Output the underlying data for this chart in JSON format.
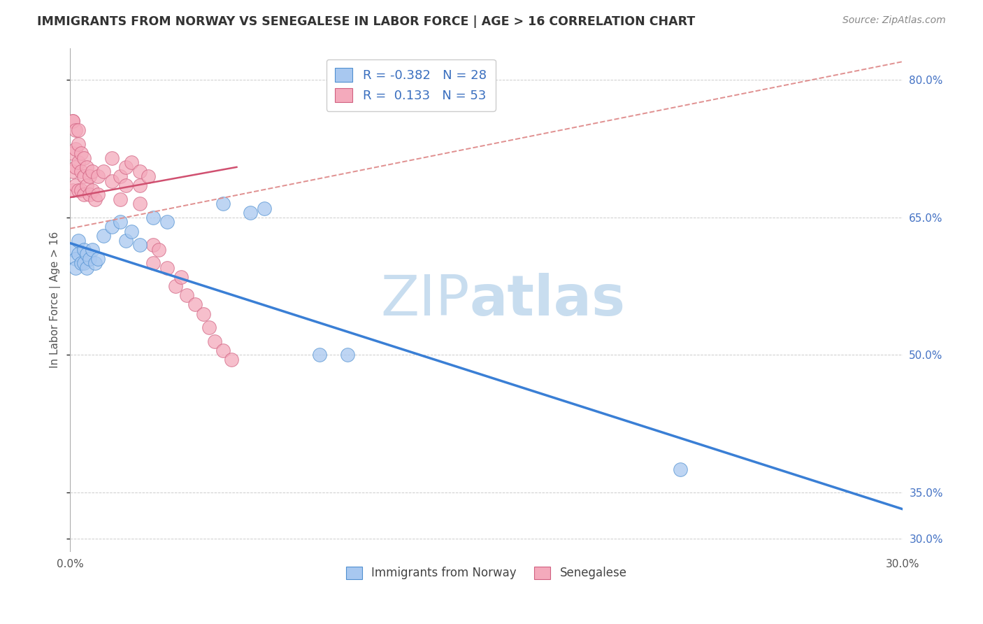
{
  "title": "IMMIGRANTS FROM NORWAY VS SENEGALESE IN LABOR FORCE | AGE > 16 CORRELATION CHART",
  "source": "Source: ZipAtlas.com",
  "ylabel": "In Labor Force | Age > 16",
  "xlim": [
    0.0,
    0.3
  ],
  "ylim": [
    0.285,
    0.835
  ],
  "yticks": [
    0.3,
    0.35,
    0.5,
    0.65,
    0.8
  ],
  "ytick_labels": [
    "30.0%",
    "35.0%",
    "50.0%",
    "65.0%",
    "80.0%"
  ],
  "xticks": [
    0.0,
    0.05,
    0.1,
    0.15,
    0.2,
    0.25,
    0.3
  ],
  "xtick_labels": [
    "0.0%",
    "",
    "",
    "",
    "",
    "",
    "30.0%"
  ],
  "legend_r_blue": "-0.382",
  "legend_n_blue": "28",
  "legend_r_pink": "0.133",
  "legend_n_pink": "53",
  "watermark_zip": "ZIP",
  "watermark_atlas": "atlas",
  "blue_scatter_x": [
    0.001,
    0.002,
    0.002,
    0.003,
    0.003,
    0.004,
    0.005,
    0.005,
    0.006,
    0.006,
    0.007,
    0.008,
    0.009,
    0.01,
    0.012,
    0.015,
    0.018,
    0.02,
    0.022,
    0.025,
    0.03,
    0.035,
    0.055,
    0.065,
    0.09,
    0.22,
    0.1,
    0.07
  ],
  "blue_scatter_y": [
    0.615,
    0.605,
    0.595,
    0.625,
    0.61,
    0.6,
    0.615,
    0.6,
    0.61,
    0.595,
    0.605,
    0.615,
    0.6,
    0.605,
    0.63,
    0.64,
    0.645,
    0.625,
    0.635,
    0.62,
    0.65,
    0.645,
    0.665,
    0.655,
    0.5,
    0.375,
    0.5,
    0.66
  ],
  "pink_scatter_x": [
    0.001,
    0.001,
    0.001,
    0.001,
    0.001,
    0.002,
    0.002,
    0.002,
    0.002,
    0.003,
    0.003,
    0.003,
    0.003,
    0.004,
    0.004,
    0.004,
    0.005,
    0.005,
    0.005,
    0.006,
    0.006,
    0.007,
    0.007,
    0.008,
    0.008,
    0.009,
    0.01,
    0.01,
    0.012,
    0.015,
    0.015,
    0.018,
    0.018,
    0.02,
    0.02,
    0.022,
    0.025,
    0.025,
    0.025,
    0.028,
    0.03,
    0.03,
    0.032,
    0.035,
    0.038,
    0.04,
    0.042,
    0.045,
    0.048,
    0.05,
    0.052,
    0.055,
    0.058
  ],
  "pink_scatter_y": [
    0.755,
    0.72,
    0.7,
    0.68,
    0.755,
    0.745,
    0.725,
    0.705,
    0.685,
    0.745,
    0.73,
    0.71,
    0.68,
    0.72,
    0.7,
    0.68,
    0.715,
    0.695,
    0.675,
    0.705,
    0.685,
    0.695,
    0.675,
    0.7,
    0.68,
    0.67,
    0.695,
    0.675,
    0.7,
    0.715,
    0.69,
    0.695,
    0.67,
    0.705,
    0.685,
    0.71,
    0.7,
    0.685,
    0.665,
    0.695,
    0.62,
    0.6,
    0.615,
    0.595,
    0.575,
    0.585,
    0.565,
    0.555,
    0.545,
    0.53,
    0.515,
    0.505,
    0.495
  ],
  "blue_line_x": [
    0.0,
    0.3
  ],
  "blue_line_y": [
    0.622,
    0.332
  ],
  "pink_solid_line_x": [
    0.0,
    0.06
  ],
  "pink_solid_line_y": [
    0.672,
    0.705
  ],
  "pink_dash_line_x": [
    0.0,
    0.3
  ],
  "pink_dash_line_y": [
    0.638,
    0.82
  ],
  "blue_color": "#A8C8F0",
  "pink_color": "#F4AABC",
  "blue_scatter_edge": "#5090D0",
  "pink_scatter_edge": "#D06080",
  "blue_line_color": "#3A7FD5",
  "pink_line_color": "#D05070",
  "pink_dash_color": "#E09090",
  "background_color": "#FFFFFF",
  "grid_color": "#CCCCCC",
  "title_color": "#333333",
  "right_axis_color": "#4472C4",
  "watermark_color_zip": "#C8DDEF",
  "watermark_color_atlas": "#C8DDEF"
}
